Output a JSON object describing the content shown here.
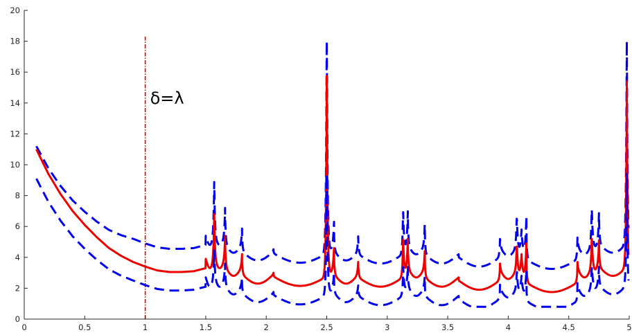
{
  "chart_data": {
    "type": "line",
    "title": "",
    "xlabel": "",
    "ylabel": "",
    "xlim": [
      0,
      5
    ],
    "ylim": [
      0,
      20
    ],
    "xticks": [
      0,
      0.5,
      1,
      1.5,
      2,
      2.5,
      3,
      3.5,
      4,
      4.5,
      5
    ],
    "xtick_labels": [
      "0",
      "0.5",
      "1",
      "1.5",
      "2",
      "2.5",
      "3",
      "3.5",
      "4",
      "4.5",
      "5"
    ],
    "yticks": [
      0,
      2,
      4,
      6,
      8,
      10,
      12,
      14,
      16,
      18,
      20
    ],
    "ytick_labels": [
      "0",
      "2",
      "4",
      "6",
      "8",
      "10",
      "12",
      "14",
      "16",
      "18",
      "20"
    ],
    "grid": false,
    "legend": "none",
    "annotation": {
      "text": "δ=λ",
      "x": 1.04,
      "y": 14.3
    },
    "vline": {
      "x": 1,
      "y_range": [
        0,
        18.3
      ],
      "color": "#e00000",
      "style": "dash-dot"
    },
    "baseline": {
      "x": [
        0.1,
        0.2,
        0.3,
        0.4,
        0.5,
        0.6,
        0.7,
        0.8,
        0.9,
        1.0,
        1.1,
        1.2,
        1.3,
        1.4,
        1.5
      ],
      "y": [
        11.0,
        9.4,
        8.1,
        7.0,
        6.1,
        5.3,
        4.6,
        4.1,
        3.7,
        3.4,
        3.15,
        3.05,
        3.05,
        3.1,
        3.3
      ]
    },
    "middle_valleys": [
      {
        "x0": 1.5,
        "x1": 1.57,
        "v": 3.3
      },
      {
        "x0": 1.57,
        "x1": 1.66,
        "v": 3.3
      },
      {
        "x0": 1.66,
        "x1": 1.8,
        "v": 2.8
      },
      {
        "x0": 1.8,
        "x1": 2.06,
        "v": 2.3
      },
      {
        "x0": 2.06,
        "x1": 2.5,
        "v": 2.15
      },
      {
        "x0": 2.5,
        "x1": 2.56,
        "v": 3.0
      },
      {
        "x0": 2.56,
        "x1": 2.76,
        "v": 2.3
      },
      {
        "x0": 2.76,
        "x1": 3.13,
        "v": 2.1
      },
      {
        "x0": 3.13,
        "x1": 3.17,
        "v": 3.2
      },
      {
        "x0": 3.17,
        "x1": 3.31,
        "v": 2.7
      },
      {
        "x0": 3.31,
        "x1": 3.59,
        "v": 2.1
      },
      {
        "x0": 3.59,
        "x1": 3.93,
        "v": 1.9
      },
      {
        "x0": 3.93,
        "x1": 4.07,
        "v": 2.6
      },
      {
        "x0": 4.07,
        "x1": 4.11,
        "v": 3.1
      },
      {
        "x0": 4.11,
        "x1": 4.15,
        "v": 3.0
      },
      {
        "x0": 4.15,
        "x1": 4.57,
        "v": 1.75
      },
      {
        "x0": 4.57,
        "x1": 4.69,
        "v": 2.7
      },
      {
        "x0": 4.69,
        "x1": 4.75,
        "v": 3.2
      },
      {
        "x0": 4.75,
        "x1": 4.98,
        "v": 2.8
      }
    ],
    "peaks": [
      {
        "x": 1.57,
        "y": 5.9
      },
      {
        "x": 1.66,
        "y": 4.5
      },
      {
        "x": 1.8,
        "y": 3.8
      },
      {
        "x": 2.06,
        "y": 3.1
      },
      {
        "x": 2.5,
        "y": 16.0
      },
      {
        "x": 2.56,
        "y": 4.0
      },
      {
        "x": 2.76,
        "y": 3.8
      },
      {
        "x": 3.13,
        "y": 5.0
      },
      {
        "x": 3.17,
        "y": 4.4
      },
      {
        "x": 3.31,
        "y": 4.1
      },
      {
        "x": 3.59,
        "y": 2.9
      },
      {
        "x": 3.93,
        "y": 3.6
      },
      {
        "x": 4.07,
        "y": 4.5
      },
      {
        "x": 4.11,
        "y": 3.5
      },
      {
        "x": 4.15,
        "y": 4.3
      },
      {
        "x": 4.57,
        "y": 3.6
      },
      {
        "x": 4.69,
        "y": 4.9
      },
      {
        "x": 4.75,
        "y": 4.3
      },
      {
        "x": 4.98,
        "y": 15.0
      }
    ],
    "series": [
      {
        "key": "upper",
        "color": "#0000ee",
        "style": "dashed",
        "offset": 1.5,
        "left_offset": 0.2,
        "peak_scale": 1.2
      },
      {
        "key": "middle",
        "color": "#ee0000",
        "style": "solid",
        "offset": 0,
        "left_offset": 0,
        "peak_scale": 1.0
      },
      {
        "key": "lower",
        "color": "#0000ee",
        "style": "dashed",
        "offset": -1.2,
        "left_offset": -1.9,
        "peak_scale": 0.6
      }
    ]
  }
}
